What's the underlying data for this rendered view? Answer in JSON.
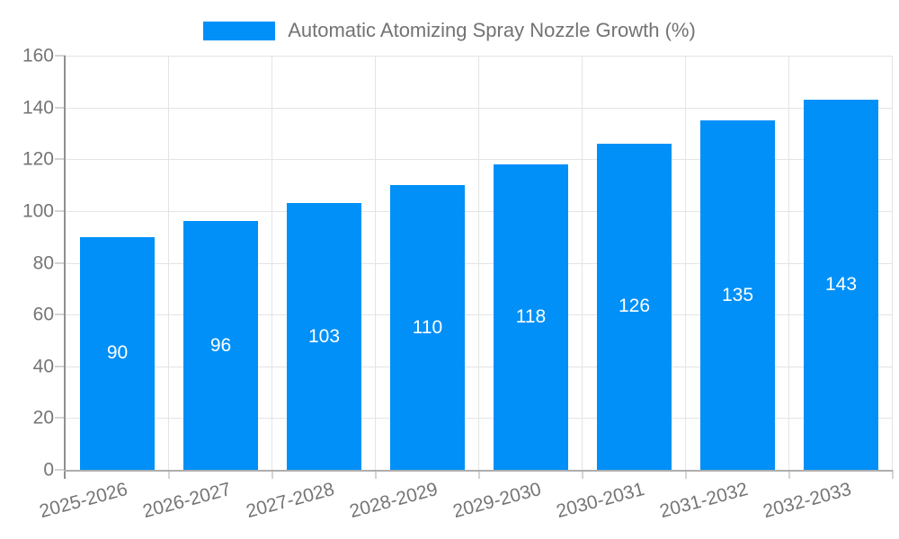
{
  "chart_data": {
    "type": "bar",
    "title": "Automatic Atomizing Spray Nozzle Growth (%)",
    "legend": [
      "Automatic Atomizing Spray Nozzle Growth (%)"
    ],
    "categories": [
      "2025-2026",
      "2026-2027",
      "2027-2028",
      "2028-2029",
      "2029-2030",
      "2030-2031",
      "2031-2032",
      "2032-2033"
    ],
    "values": [
      90,
      96,
      103,
      110,
      118,
      126,
      135,
      143
    ],
    "xlabel": "",
    "ylabel": "",
    "ylim": [
      0,
      160
    ],
    "yticks": [
      0,
      20,
      40,
      60,
      80,
      100,
      120,
      140,
      160
    ],
    "grid": true,
    "legend_position": "top-center",
    "x_tick_rotation_deg": -15,
    "bar_color": "#0090f8",
    "bar_label_color": "#ffffff",
    "axis_text_color": "#757575",
    "gridline_color": "#e4e4e4",
    "axis_line_color": "#8f8f8f"
  }
}
